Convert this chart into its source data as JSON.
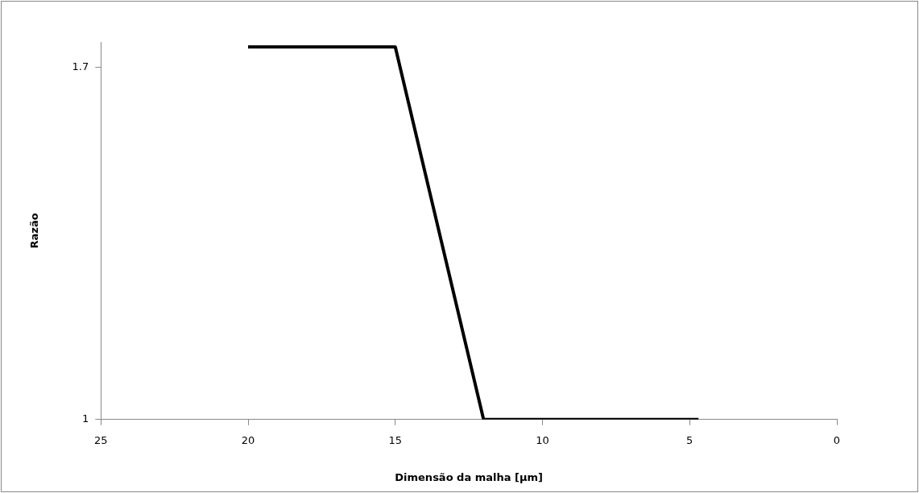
{
  "chart_data": {
    "type": "line",
    "xlabel": "Dimensão da malha [µm]",
    "ylabel": "Razão",
    "x": [
      20,
      15,
      12,
      4.7
    ],
    "series": [
      {
        "color": "#000000",
        "values": [
          1.74,
          1.74,
          1,
          1
        ]
      }
    ],
    "xlim": [
      25,
      0
    ],
    "xticks": [
      25,
      20,
      15,
      10,
      5,
      0
    ],
    "ylim": [
      1,
      1.75
    ],
    "yticks": [
      1,
      1.7
    ],
    "grid": false,
    "legend": false,
    "marker": "none",
    "line_style": "solid"
  }
}
